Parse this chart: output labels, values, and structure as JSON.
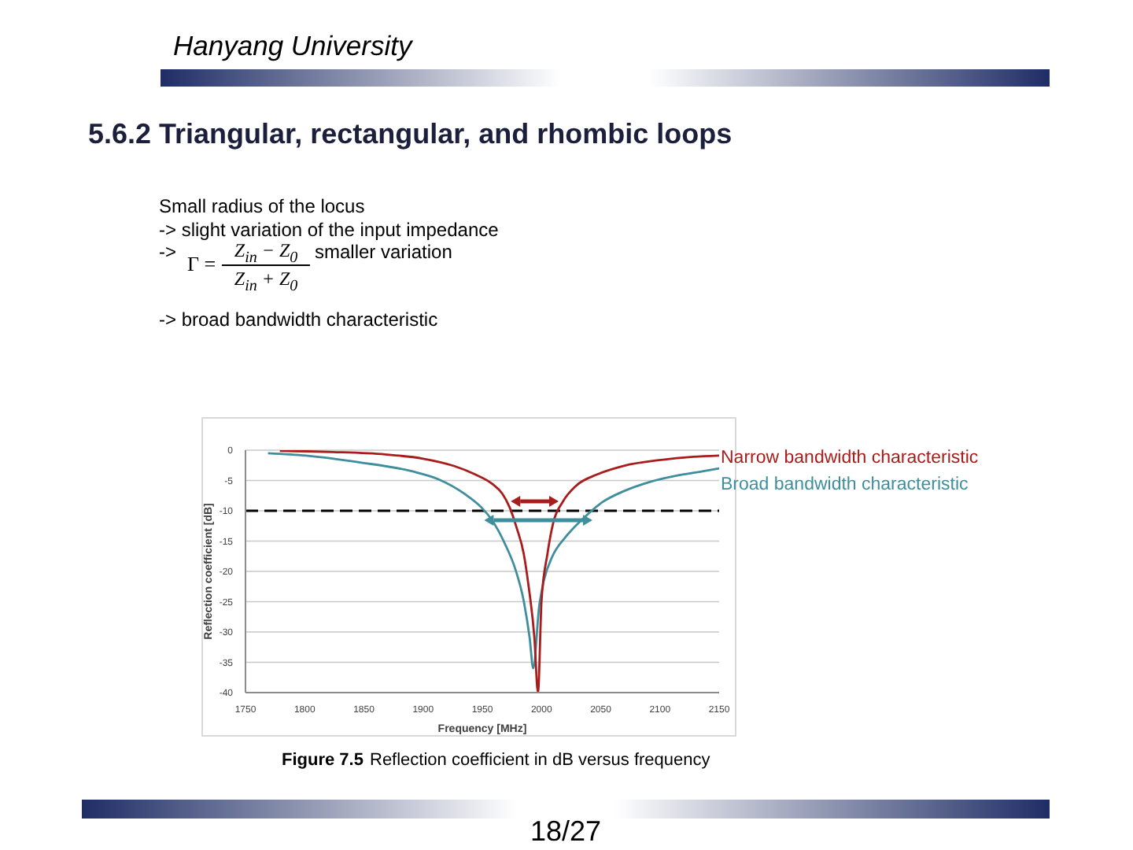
{
  "chart_data": {
    "type": "line",
    "title": "5.6.2 Triangular, rectangular, and rhombic loops",
    "xlabel": "Frequency [MHz]",
    "ylabel": "Reflection coefficient [dB]",
    "xlim": [
      1750,
      2150
    ],
    "xticks": [
      1750,
      1800,
      1850,
      1900,
      1950,
      2000,
      2050,
      2100,
      2150
    ],
    "ylim": [
      -40,
      0
    ],
    "yticks": [
      -40,
      -35,
      -30,
      -25,
      -20,
      -15,
      -10,
      -5,
      0
    ],
    "grid": "y",
    "series": [
      {
        "name": "Narrow bandwidth characteristic",
        "color": "#a81c1c",
        "x": [
          1779,
          1824,
          1868,
          1900,
          1926,
          1944,
          1958,
          1967,
          1973,
          1979,
          1985,
          1989,
          1994,
          1997,
          2000,
          2005,
          2010,
          2018,
          2029,
          2047,
          2069,
          2101,
          2128,
          2150
        ],
        "values": [
          -0.1,
          -0.3,
          -0.7,
          -1.4,
          -2.6,
          -4.0,
          -5.5,
          -7.2,
          -9.4,
          -12.8,
          -17.1,
          -22.3,
          -31,
          -40,
          -24.9,
          -17.1,
          -11.9,
          -8.5,
          -5.9,
          -4.0,
          -2.6,
          -1.6,
          -1.1,
          -0.9
        ]
      },
      {
        "name": "Broad bandwidth characteristic",
        "color": "#3f8e9e",
        "x": [
          1769,
          1801,
          1846,
          1891,
          1913,
          1935,
          1949,
          1958,
          1969,
          1978,
          1985,
          1990,
          1993,
          1998,
          2002,
          2009,
          2020,
          2034,
          2052,
          2069,
          2092,
          2114,
          2136,
          2150
        ],
        "values": [
          -0.5,
          -0.9,
          -2.0,
          -3.5,
          -4.8,
          -7.2,
          -9.4,
          -11.5,
          -15.4,
          -19.7,
          -24.9,
          -31,
          -36,
          -25.8,
          -21.5,
          -17.6,
          -14.4,
          -11.5,
          -8.5,
          -6.8,
          -5.2,
          -4.2,
          -3.5,
          -3.0
        ]
      }
    ],
    "ref_lines": [
      {
        "axis": "y",
        "value": -10,
        "color": "#000000",
        "line_style": "dashed"
      }
    ],
    "annotations": [
      "Hanyang University",
      "Small radius of the locus",
      "-> slight variation of the input impedance",
      "->",
      "Γ =",
      "Z$_{in}$ − Z$_{0}$",
      "Z$_{in}$ + Z$_{0}$",
      "smaller variation",
      "-> broad bandwidth characteristic",
      "Figure 7.5",
      "Reflection coefficient in dB versus frequency",
      "18/27"
    ]
  }
}
